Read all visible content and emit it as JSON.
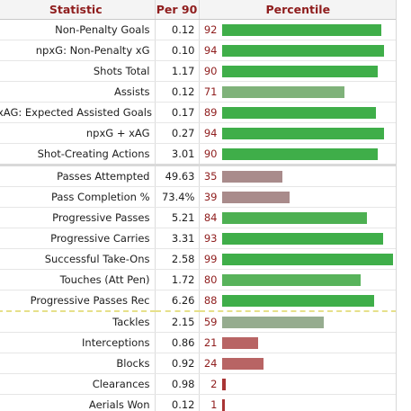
{
  "headers": {
    "statistic": "Statistic",
    "per90": "Per 90",
    "percentile": "Percentile"
  },
  "colors": {
    "high": "#3fae49",
    "mid": "#7fb27a",
    "neutral": "#96ac8f",
    "low_mauve": "#a98b8b",
    "low_red": "#b86464",
    "very_low": "#a93535"
  },
  "rows": [
    {
      "stat": "Non-Penalty Goals",
      "per90": "0.12",
      "percentile": "92",
      "value": 92,
      "color": "#3fae49"
    },
    {
      "stat": "npxG: Non-Penalty xG",
      "per90": "0.10",
      "percentile": "94",
      "value": 94,
      "color": "#3fae49"
    },
    {
      "stat": "Shots Total",
      "per90": "1.17",
      "percentile": "90",
      "value": 90,
      "color": "#3fae49"
    },
    {
      "stat": "Assists",
      "per90": "0.12",
      "percentile": "71",
      "value": 71,
      "color": "#7fb27a"
    },
    {
      "stat": "xAG: Expected Assisted Goals",
      "per90": "0.17",
      "percentile": "89",
      "value": 89,
      "color": "#3fae49"
    },
    {
      "stat": "npxG + xAG",
      "per90": "0.27",
      "percentile": "94",
      "value": 94,
      "color": "#3fae49"
    },
    {
      "stat": "Shot-Creating Actions",
      "per90": "3.01",
      "percentile": "90",
      "value": 90,
      "color": "#3fae49"
    },
    {
      "stat": "Passes Attempted",
      "per90": "49.63",
      "percentile": "35",
      "value": 35,
      "color": "#a98b8b"
    },
    {
      "stat": "Pass Completion %",
      "per90": "73.4%",
      "percentile": "39",
      "value": 39,
      "color": "#a98b8b"
    },
    {
      "stat": "Progressive Passes",
      "per90": "5.21",
      "percentile": "84",
      "value": 84,
      "color": "#4db052"
    },
    {
      "stat": "Progressive Carries",
      "per90": "3.31",
      "percentile": "93",
      "value": 93,
      "color": "#3fae49"
    },
    {
      "stat": "Successful Take-Ons",
      "per90": "2.58",
      "percentile": "99",
      "value": 99,
      "color": "#3fae49"
    },
    {
      "stat": "Touches (Att Pen)",
      "per90": "1.72",
      "percentile": "80",
      "value": 80,
      "color": "#58b35b"
    },
    {
      "stat": "Progressive Passes Rec",
      "per90": "6.26",
      "percentile": "88",
      "value": 88,
      "color": "#3fae49"
    },
    {
      "stat": "Tackles",
      "per90": "2.15",
      "percentile": "59",
      "value": 59,
      "color": "#96ac8f"
    },
    {
      "stat": "Interceptions",
      "per90": "0.86",
      "percentile": "21",
      "value": 21,
      "color": "#b86464"
    },
    {
      "stat": "Blocks",
      "per90": "0.92",
      "percentile": "24",
      "value": 24,
      "color": "#b86464"
    },
    {
      "stat": "Clearances",
      "per90": "0.98",
      "percentile": "2",
      "value": 2,
      "color": "#a93535"
    },
    {
      "stat": "Aerials Won",
      "per90": "0.12",
      "percentile": "1",
      "value": 1,
      "color": "#a93535"
    }
  ]
}
